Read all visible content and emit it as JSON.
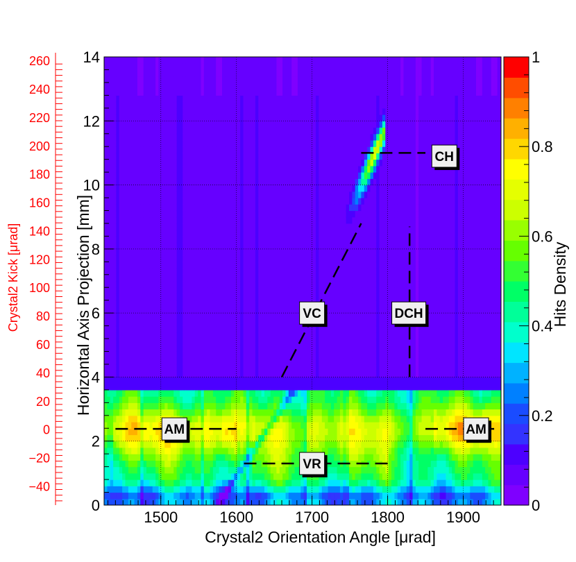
{
  "chart_data": {
    "type": "heatmap",
    "title": "",
    "xlabel": "Crystal2 Orientation Angle [μrad]",
    "ylabel": "Horizontal Axis Projection [mm]",
    "y2label": "Crystal2 Kick [μrad]",
    "zlabel": "Hits Density",
    "xlim": [
      1425,
      1950
    ],
    "ylim": [
      0,
      14
    ],
    "y2lim": [
      -53,
      263
    ],
    "zlim": [
      0,
      1
    ],
    "x_ticks": [
      "1500",
      "1600",
      "1700",
      "1800",
      "1900"
    ],
    "y_ticks": [
      "0",
      "2",
      "4",
      "6",
      "8",
      "10",
      "12",
      "14"
    ],
    "y2_ticks": [
      "−40",
      "−20",
      "0",
      "20",
      "40",
      "60",
      "80",
      "100",
      "120",
      "140",
      "160",
      "180",
      "200",
      "220",
      "240",
      "260"
    ],
    "z_ticks": [
      "0",
      "0.2",
      "0.4",
      "0.6",
      "0.8",
      "1"
    ],
    "grid": true,
    "colorscale": [
      "#7f00ff",
      "#6600ff",
      "#4c00ff",
      "#3333ff",
      "#1a4cff",
      "#0080ff",
      "#00b2ff",
      "#00e5ff",
      "#00ffcc",
      "#00ff99",
      "#00ff66",
      "#33ff33",
      "#66ff00",
      "#99ff00",
      "#ccff00",
      "#e5ff00",
      "#ffff00",
      "#ffd700",
      "#ffb000",
      "#ff8000",
      "#ff4d00",
      "#ff0000"
    ],
    "colors": {
      "secondary_axis": "#ff0000",
      "background": "#5a24f0",
      "band": "#33ff66"
    },
    "regions": [
      {
        "label": "CH",
        "x": 1875,
        "y": 10.9
      },
      {
        "label": "VC",
        "x": 1700,
        "y": 6.0
      },
      {
        "label": "DCH",
        "x": 1828,
        "y": 6.0
      },
      {
        "label": "AM",
        "x": 1518,
        "y": 2.38
      },
      {
        "label": "AM",
        "x": 1917,
        "y": 2.38
      },
      {
        "label": "VR",
        "x": 1700,
        "y": 1.3
      }
    ],
    "guide_lines": [
      {
        "x": [
          1765,
          1850
        ],
        "y": [
          11.0,
          11.0
        ]
      },
      {
        "x": [
          1660,
          1765
        ],
        "y": [
          4.0,
          8.8
        ]
      },
      {
        "x": [
          1829,
          1829
        ],
        "y": [
          4.0,
          8.7
        ]
      },
      {
        "x": [
          1440,
          1600
        ],
        "y": [
          2.38,
          2.38
        ]
      },
      {
        "x": [
          1850,
          1945
        ],
        "y": [
          2.38,
          2.38
        ]
      },
      {
        "x": [
          1610,
          1805
        ],
        "y": [
          1.3,
          1.3
        ]
      }
    ]
  }
}
